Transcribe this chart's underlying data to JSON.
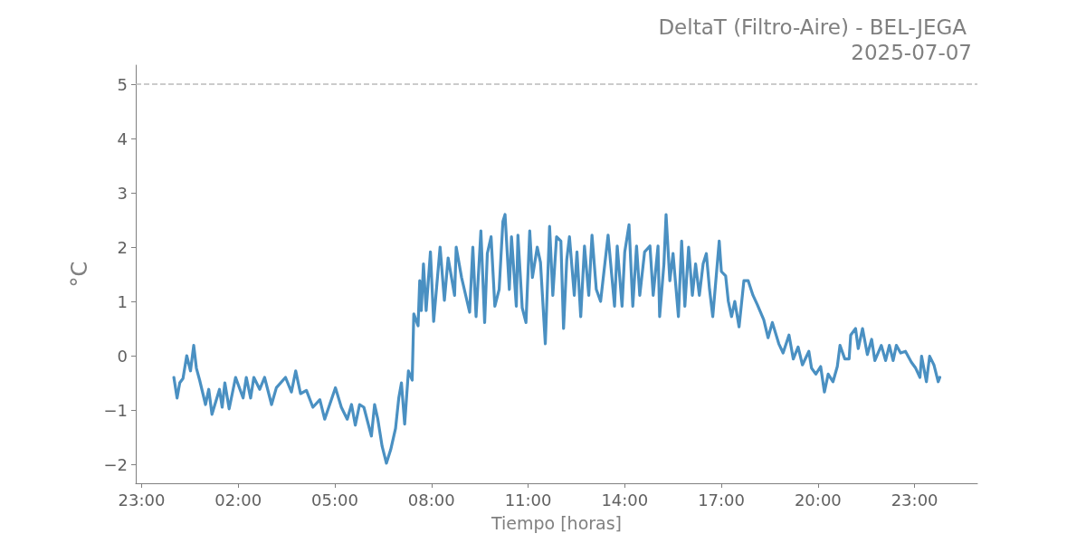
{
  "chart_data": {
    "type": "line",
    "title": "DeltaT (Filtro-Aire) - BEL-JEGA",
    "subtitle": "2025-07-07",
    "xlabel": "Tiempo [horas]",
    "ylabel": "°C",
    "color": "#4a90c2",
    "x": [
      "2025-07-07T00:00",
      "2025-07-07T00:06",
      "2025-07-07T00:11",
      "2025-07-07T00:17",
      "2025-07-07T00:24",
      "2025-07-07T00:31",
      "2025-07-07T00:37",
      "2025-07-07T00:42",
      "2025-07-07T00:48",
      "2025-07-07T00:59",
      "2025-07-07T01:05",
      "2025-07-07T01:11",
      "2025-07-07T01:25",
      "2025-07-07T01:30",
      "2025-07-07T01:35",
      "2025-07-07T01:43",
      "2025-07-07T01:55",
      "2025-07-07T02:09",
      "2025-07-07T02:15",
      "2025-07-07T02:23",
      "2025-07-07T02:29",
      "2025-07-07T02:40",
      "2025-07-07T02:49",
      "2025-07-07T03:02",
      "2025-07-07T03:11",
      "2025-07-07T03:28",
      "2025-07-07T03:39",
      "2025-07-07T03:47",
      "2025-07-07T03:56",
      "2025-07-07T04:07",
      "2025-07-07T04:19",
      "2025-07-07T04:32",
      "2025-07-07T04:41",
      "2025-07-07T05:01",
      "2025-07-07T05:12",
      "2025-07-07T05:23",
      "2025-07-07T05:31",
      "2025-07-07T05:38",
      "2025-07-07T05:46",
      "2025-07-07T05:54",
      "2025-07-07T06:08",
      "2025-07-07T06:14",
      "2025-07-07T06:20",
      "2025-07-07T06:28",
      "2025-07-07T06:36",
      "2025-07-07T06:44",
      "2025-07-07T06:53",
      "2025-07-07T06:59",
      "2025-07-07T07:04",
      "2025-07-07T07:10",
      "2025-07-07T07:17",
      "2025-07-07T07:24",
      "2025-07-07T07:27",
      "2025-07-07T07:35",
      "2025-07-07T07:38",
      "2025-07-07T07:41",
      "2025-07-07T07:45",
      "2025-07-07T07:50",
      "2025-07-07T07:58",
      "2025-07-07T08:04",
      "2025-07-07T08:16",
      "2025-07-07T08:24",
      "2025-07-07T08:31",
      "2025-07-07T08:43",
      "2025-07-07T08:46",
      "2025-07-07T08:56",
      "2025-07-07T09:11",
      "2025-07-07T09:17",
      "2025-07-07T09:23",
      "2025-07-07T09:32",
      "2025-07-07T09:39",
      "2025-07-07T09:44",
      "2025-07-07T09:51",
      "2025-07-07T09:58",
      "2025-07-07T10:06",
      "2025-07-07T10:13",
      "2025-07-07T10:17",
      "2025-07-07T10:25",
      "2025-07-07T10:29",
      "2025-07-07T10:38",
      "2025-07-07T10:41",
      "2025-07-07T10:49",
      "2025-07-07T10:56",
      "2025-07-07T11:03",
      "2025-07-07T11:08",
      "2025-07-07T11:17",
      "2025-07-07T11:23",
      "2025-07-07T11:32",
      "2025-07-07T11:40",
      "2025-07-07T11:46",
      "2025-07-07T11:53",
      "2025-07-07T12:01",
      "2025-07-07T12:06",
      "2025-07-07T12:12",
      "2025-07-07T12:17",
      "2025-07-07T12:26",
      "2025-07-07T12:31",
      "2025-07-07T12:38",
      "2025-07-07T12:45",
      "2025-07-07T12:53",
      "2025-07-07T12:59",
      "2025-07-07T13:07",
      "2025-07-07T13:15",
      "2025-07-07T13:29",
      "2025-07-07T13:41",
      "2025-07-07T13:46",
      "2025-07-07T13:55",
      "2025-07-07T14:00",
      "2025-07-07T14:08",
      "2025-07-07T14:15",
      "2025-07-07T14:22",
      "2025-07-07T14:28",
      "2025-07-07T14:37",
      "2025-07-07T14:47",
      "2025-07-07T14:53",
      "2025-07-07T15:02",
      "2025-07-07T15:05",
      "2025-07-07T15:13",
      "2025-07-07T15:17",
      "2025-07-07T15:24",
      "2025-07-07T15:30",
      "2025-07-07T15:40",
      "2025-07-07T15:46",
      "2025-07-07T15:52",
      "2025-07-07T15:59",
      "2025-07-07T16:06",
      "2025-07-07T16:12",
      "2025-07-07T16:19",
      "2025-07-07T16:26",
      "2025-07-07T16:32",
      "2025-07-07T16:38",
      "2025-07-07T16:44",
      "2025-07-07T16:56",
      "2025-07-07T17:00",
      "2025-07-07T17:08",
      "2025-07-07T17:13",
      "2025-07-07T17:19",
      "2025-07-07T17:25",
      "2025-07-07T17:33",
      "2025-07-07T17:42",
      "2025-07-07T17:50",
      "2025-07-07T17:59",
      "2025-07-07T18:07",
      "2025-07-07T18:19",
      "2025-07-07T18:27",
      "2025-07-07T18:35",
      "2025-07-07T18:47",
      "2025-07-07T18:55",
      "2025-07-07T19:06",
      "2025-07-07T19:14",
      "2025-07-07T19:23",
      "2025-07-07T19:31",
      "2025-07-07T19:43",
      "2025-07-07T19:48",
      "2025-07-07T19:56",
      "2025-07-07T20:05",
      "2025-07-07T20:12",
      "2025-07-07T20:19",
      "2025-07-07T20:28",
      "2025-07-07T20:36",
      "2025-07-07T20:41",
      "2025-07-07T20:50",
      "2025-07-07T20:58",
      "2025-07-07T21:01",
      "2025-07-07T21:10",
      "2025-07-07T21:15",
      "2025-07-07T21:23",
      "2025-07-07T21:32",
      "2025-07-07T21:40",
      "2025-07-07T21:46",
      "2025-07-07T21:58",
      "2025-07-07T22:06",
      "2025-07-07T22:13",
      "2025-07-07T22:20",
      "2025-07-07T22:26",
      "2025-07-07T22:34",
      "2025-07-07T22:43",
      "2025-07-07T22:54",
      "2025-07-07T23:02",
      "2025-07-07T23:10",
      "2025-07-07T23:13",
      "2025-07-07T23:22",
      "2025-07-07T23:28",
      "2025-07-07T23:36",
      "2025-07-07T23:44",
      "2025-07-07T23:47"
    ],
    "values": [
      -0.4,
      -0.78,
      -0.5,
      -0.42,
      0.0,
      -0.28,
      0.19,
      -0.23,
      -0.45,
      -0.9,
      -0.62,
      -1.08,
      -0.62,
      -0.95,
      -0.5,
      -0.98,
      -0.4,
      -0.78,
      -0.4,
      -0.78,
      -0.4,
      -0.62,
      -0.4,
      -0.9,
      -0.59,
      -0.4,
      -0.67,
      -0.28,
      -0.7,
      -0.64,
      -0.95,
      -0.81,
      -1.17,
      -0.59,
      -0.95,
      -1.17,
      -0.9,
      -1.28,
      -0.9,
      -0.95,
      -1.48,
      -0.9,
      -1.17,
      -1.67,
      -1.98,
      -1.73,
      -1.34,
      -0.78,
      -0.5,
      -1.26,
      -0.28,
      -0.45,
      0.77,
      0.55,
      1.38,
      0.83,
      1.69,
      0.83,
      1.91,
      0.63,
      2.0,
      1.02,
      1.8,
      1.11,
      2.0,
      1.44,
      0.8,
      2.0,
      0.72,
      2.3,
      0.61,
      1.88,
      2.19,
      0.91,
      1.22,
      2.47,
      2.6,
      1.22,
      2.19,
      0.91,
      2.22,
      0.88,
      0.61,
      2.3,
      1.44,
      2.0,
      1.72,
      0.22,
      2.38,
      1.11,
      2.19,
      2.11,
      0.5,
      1.77,
      2.19,
      1.11,
      1.91,
      0.72,
      2.02,
      1.11,
      2.22,
      1.22,
      1.0,
      2.22,
      0.91,
      2.02,
      0.91,
      1.91,
      2.41,
      0.91,
      2.02,
      1.11,
      1.91,
      2.02,
      1.11,
      2.02,
      0.72,
      1.69,
      2.6,
      1.38,
      1.88,
      0.72,
      2.11,
      0.91,
      2.0,
      1.11,
      1.69,
      1.11,
      1.69,
      1.88,
      1.22,
      0.72,
      2.11,
      1.55,
      1.47,
      1.0,
      0.72,
      1.0,
      0.53,
      1.38,
      1.38,
      1.11,
      0.94,
      0.66,
      0.33,
      0.61,
      0.22,
      0.05,
      0.38,
      -0.06,
      0.16,
      -0.17,
      0.08,
      -0.23,
      -0.34,
      -0.2,
      -0.67,
      -0.34,
      -0.48,
      -0.2,
      0.19,
      -0.06,
      -0.06,
      0.38,
      0.5,
      0.13,
      0.5,
      0.02,
      0.3,
      -0.09,
      0.19,
      -0.09,
      0.19,
      -0.09,
      0.19,
      0.05,
      0.08,
      -0.12,
      -0.23,
      -0.4,
      -0.01,
      -0.48,
      -0.01,
      -0.17,
      -0.48,
      -0.4
    ],
    "xlim": [
      "2025-07-06T22:49",
      "2025-07-08T00:57"
    ],
    "ylim": [
      -2.35,
      5.35
    ],
    "xticks": [
      {
        "value": "2025-07-06T23:00",
        "label": "23:00"
      },
      {
        "value": "2025-07-07T02:00",
        "label": "02:00"
      },
      {
        "value": "2025-07-07T05:00",
        "label": "05:00"
      },
      {
        "value": "2025-07-07T08:00",
        "label": "08:00"
      },
      {
        "value": "2025-07-07T11:00",
        "label": "11:00"
      },
      {
        "value": "2025-07-07T14:00",
        "label": "14:00"
      },
      {
        "value": "2025-07-07T17:00",
        "label": "17:00"
      },
      {
        "value": "2025-07-07T20:00",
        "label": "20:00"
      },
      {
        "value": "2025-07-07T23:00",
        "label": "23:00"
      }
    ],
    "yticks": [
      {
        "value": -2,
        "label": "−2"
      },
      {
        "value": -1,
        "label": "−1"
      },
      0,
      1,
      2,
      3,
      4,
      5
    ],
    "ref_lines": [
      {
        "axis": "y",
        "value": 5,
        "color": "#bbbbbb",
        "line_style": "dashed"
      }
    ]
  }
}
